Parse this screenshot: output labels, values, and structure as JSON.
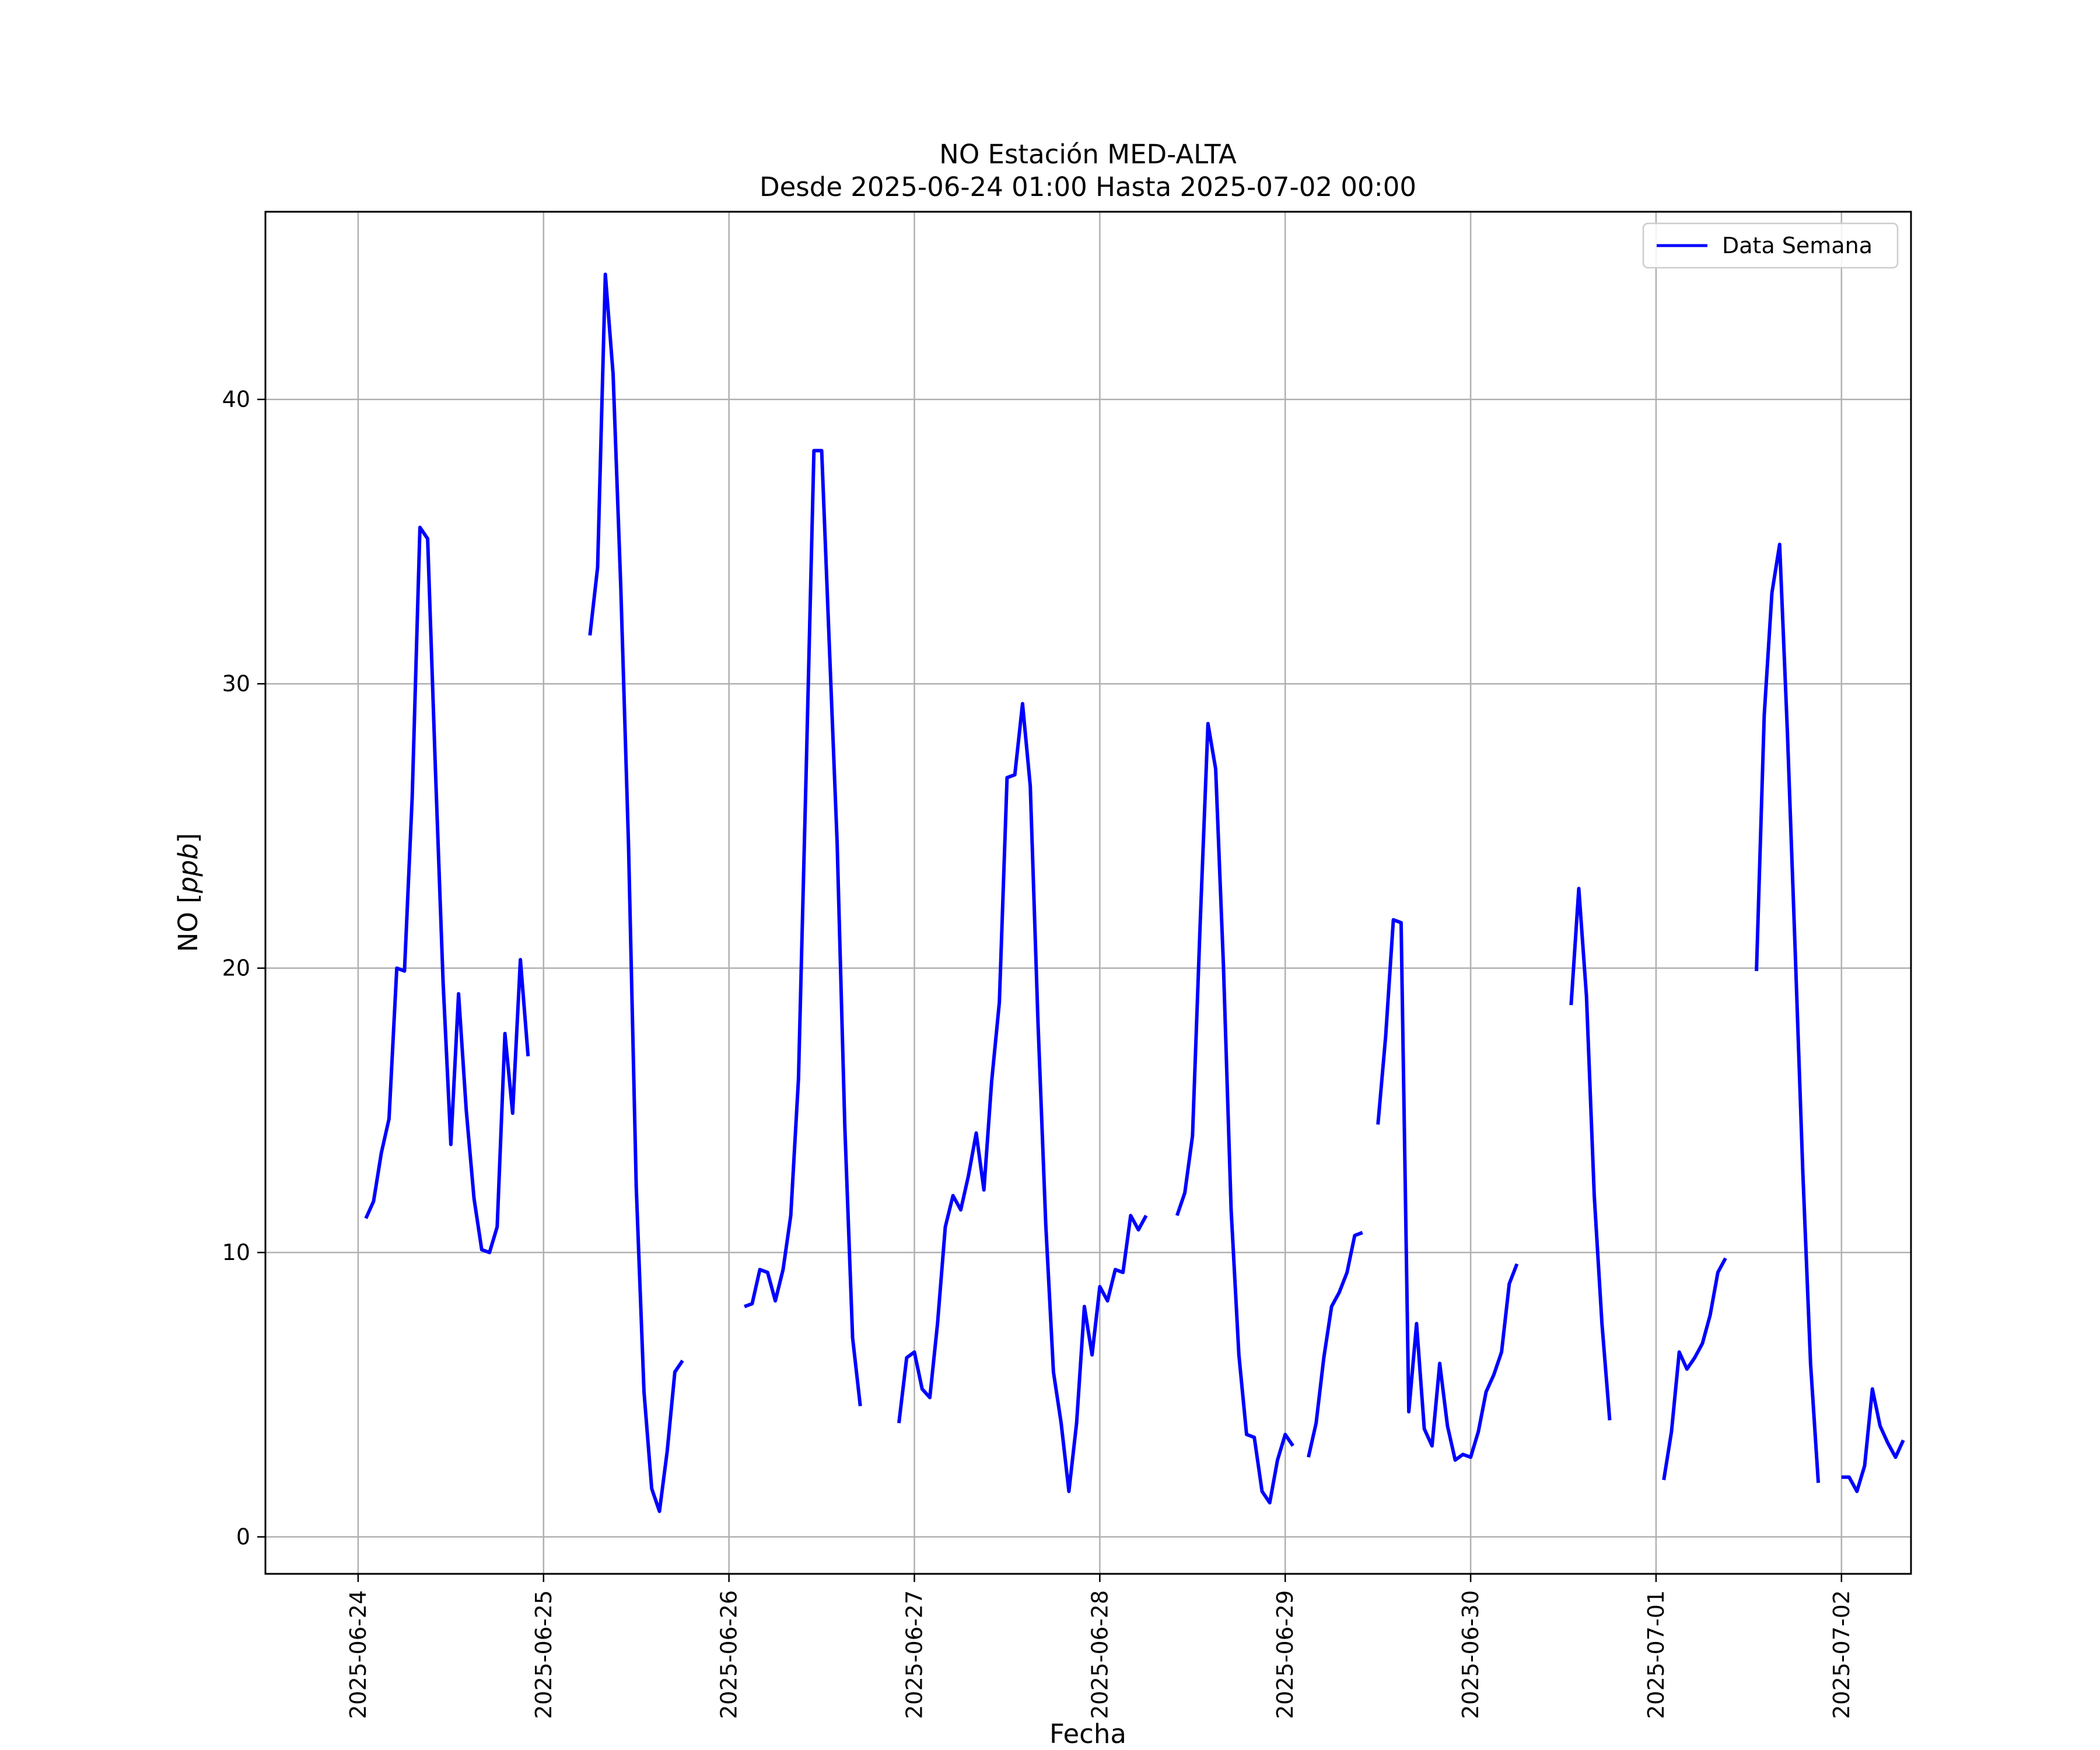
{
  "chart_data": {
    "type": "line",
    "title": "NO Estación MED-ALTA",
    "subtitle": "Desde 2025-06-24 01:00 Hasta 2025-07-02 00:00",
    "xlabel": "Fecha",
    "ylabel_main": "NO [",
    "ylabel_italic": "ppb",
    "ylabel_end": "]",
    "x_start": "2025-06-24 01:00",
    "x_end": "2025-07-02 00:00",
    "xlim": [
      "2025-06-23 12:00",
      "2025-07-02 09:00"
    ],
    "ylim": [
      -1.3,
      46.6
    ],
    "x_ticks": [
      "2025-06-24",
      "2025-06-25",
      "2025-06-26",
      "2025-06-27",
      "2025-06-28",
      "2025-06-29",
      "2025-06-30",
      "2025-07-01",
      "2025-07-02"
    ],
    "y_ticks": [
      0,
      10,
      20,
      30,
      40
    ],
    "grid": true,
    "legend_position": "top-right",
    "series": [
      {
        "name": "Data Semana",
        "color": "#0000ff",
        "values": [
          11.2,
          11.8,
          13.5,
          14.7,
          20.0,
          19.9,
          26.0,
          35.5,
          35.1,
          27.0,
          19.5,
          13.8,
          19.1,
          15.0,
          11.9,
          10.1,
          10.0,
          10.9,
          17.7,
          14.9,
          20.3,
          16.9,
          null,
          null,
          null,
          null,
          null,
          null,
          null,
          31.7,
          34.1,
          44.4,
          40.9,
          33.4,
          24.3,
          12.3,
          5.1,
          1.7,
          0.9,
          3.0,
          5.8,
          6.2,
          null,
          null,
          null,
          null,
          null,
          null,
          null,
          8.1,
          8.2,
          9.4,
          9.3,
          8.3,
          9.4,
          11.3,
          16.1,
          27.0,
          38.2,
          38.2,
          31.3,
          24.4,
          14.4,
          7.0,
          4.6,
          null,
          null,
          null,
          null,
          4.0,
          6.3,
          6.5,
          5.2,
          4.9,
          7.5,
          10.9,
          12.0,
          11.5,
          12.7,
          14.2,
          12.2,
          16.0,
          18.8,
          26.7,
          26.8,
          29.3,
          26.4,
          18.1,
          11.0,
          5.8,
          4.0,
          1.6,
          4.0,
          8.1,
          6.4,
          8.8,
          8.3,
          9.4,
          9.3,
          11.3,
          10.8,
          11.3,
          null,
          null,
          null,
          11.3,
          12.1,
          14.1,
          21.6,
          28.6,
          27.0,
          20.1,
          11.5,
          6.4,
          3.6,
          3.5,
          1.6,
          1.2,
          2.7,
          3.6,
          3.2,
          null,
          2.8,
          4.0,
          6.3,
          8.1,
          8.6,
          9.3,
          10.6,
          10.7,
          null,
          14.5,
          17.6,
          21.7,
          21.6,
          4.4,
          7.5,
          3.8,
          3.2,
          6.1,
          3.9,
          2.7,
          2.9,
          2.8,
          3.7,
          5.1,
          5.7,
          6.5,
          8.9,
          9.6,
          null,
          null,
          null,
          null,
          null,
          null,
          18.7,
          22.8,
          19.0,
          12.0,
          7.5,
          4.1,
          null,
          null,
          null,
          null,
          null,
          null,
          2.0,
          3.7,
          6.5,
          5.9,
          6.3,
          6.8,
          7.8,
          9.3,
          9.8,
          null,
          null,
          null,
          19.9,
          28.9,
          33.2,
          34.9,
          28.3,
          20.7,
          12.8,
          6.1,
          1.9,
          null,
          null,
          2.1,
          2.1,
          1.6,
          2.5,
          5.2,
          3.9,
          3.3,
          2.8,
          3.4
        ]
      }
    ]
  }
}
